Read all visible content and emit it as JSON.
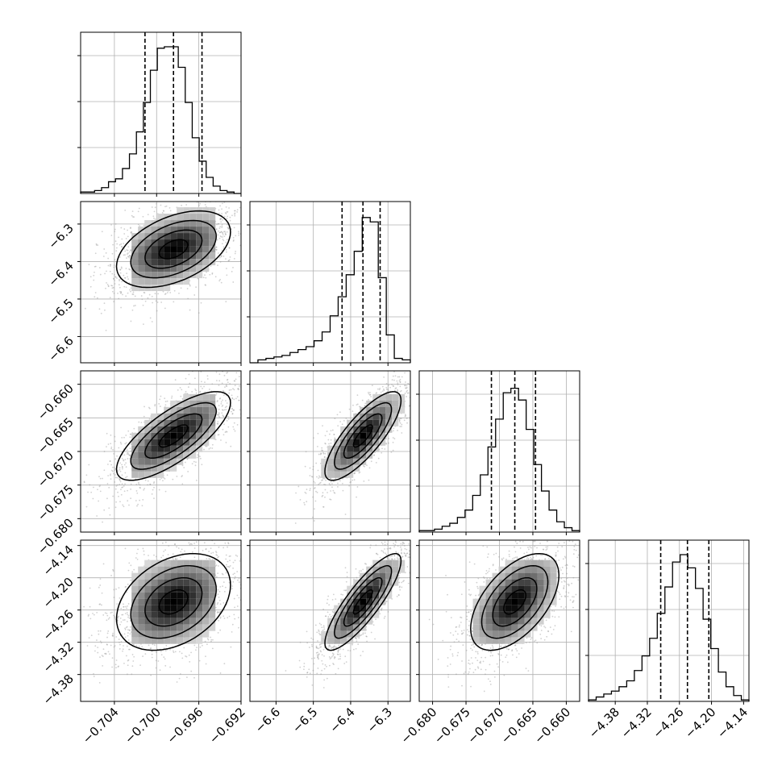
{
  "chart_data": {
    "type": "corner",
    "title": "",
    "parameters": [
      {
        "ticks": [
          -0.704,
          -0.7,
          -0.696,
          -0.692
        ],
        "tick_labels": [
          "−0.704",
          "−0.700",
          "−0.696",
          "−0.692"
        ],
        "range": [
          -0.7072,
          -0.692
        ],
        "median": -0.6984,
        "quantile_16": -0.7011,
        "quantile_84": -0.6957,
        "hist": [
          1,
          1,
          2,
          4,
          8,
          10,
          17,
          27,
          42,
          62,
          84,
          99,
          100,
          100,
          86,
          62,
          38,
          22,
          11,
          5,
          2,
          1,
          0
        ]
      },
      {
        "ticks": [
          -6.6,
          -6.5,
          -6.4,
          -6.3
        ],
        "tick_labels": [
          "−6.6",
          "−6.5",
          "−6.4",
          "−6.3"
        ],
        "range": [
          -6.67,
          -6.24
        ],
        "median": -6.367,
        "quantile_16": -6.423,
        "quantile_84": -6.321,
        "hist": [
          0,
          2,
          3,
          4,
          5,
          7,
          9,
          11,
          15,
          21,
          32,
          45,
          60,
          76,
          99,
          96,
          58,
          19,
          3,
          2
        ]
      },
      {
        "ticks": [
          -0.68,
          -0.675,
          -0.67,
          -0.665,
          -0.66
        ],
        "tick_labels": [
          "−0.680",
          "−0.675",
          "−0.670",
          "−0.665",
          "−0.660"
        ],
        "range": [
          -0.682,
          -0.658
        ],
        "median": -0.6677,
        "quantile_16": -0.6712,
        "quantile_84": -0.6646,
        "hist": [
          1,
          1,
          2,
          4,
          6,
          10,
          15,
          25,
          39,
          58,
          77,
          95,
          98,
          90,
          70,
          46,
          28,
          15,
          7,
          3,
          1
        ]
      },
      {
        "ticks": [
          -4.38,
          -4.32,
          -4.26,
          -4.2,
          -4.14
        ],
        "tick_labels": [
          "−4.38",
          "−4.32",
          "−4.26",
          "−4.20",
          "−4.14"
        ],
        "range": [
          -4.43,
          -4.13
        ],
        "median": -4.245,
        "quantile_16": -4.295,
        "quantile_84": -4.205,
        "hist": [
          1,
          3,
          5,
          7,
          10,
          14,
          21,
          31,
          43,
          60,
          78,
          95,
          100,
          91,
          77,
          56,
          36,
          20,
          10,
          4,
          1
        ]
      }
    ],
    "correlations": [
      [
        1,
        0.45,
        0.75,
        0.35
      ],
      [
        0.45,
        1,
        0.8,
        0.85
      ],
      [
        0.75,
        0.8,
        1,
        0.55
      ],
      [
        0.35,
        0.85,
        0.55,
        1
      ]
    ],
    "grid": true,
    "style": {
      "line_color": "#000000",
      "grid_color": "#b0b0b0",
      "point_color": "#9a9a9a"
    }
  }
}
